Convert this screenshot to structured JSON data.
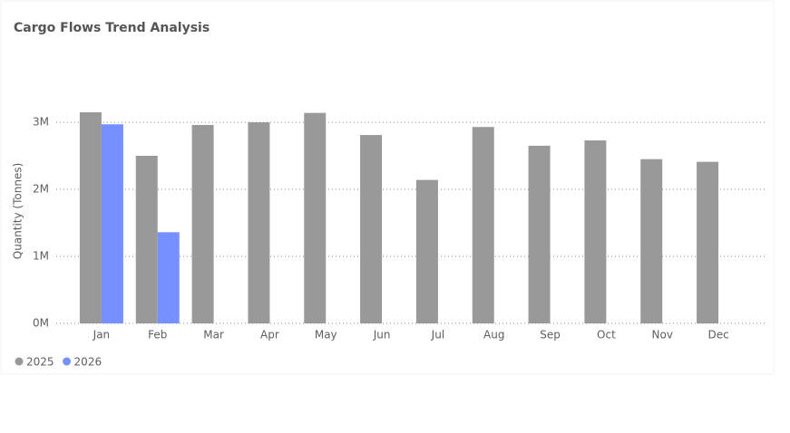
{
  "chart_data": {
    "type": "bar",
    "title": "Cargo Flows Trend Analysis",
    "y_label": "Quantity (Tonnes)",
    "categories": [
      "Jan",
      "Feb",
      "Mar",
      "Apr",
      "May",
      "Jun",
      "Jul",
      "Aug",
      "Sep",
      "Oct",
      "Nov",
      "Dec"
    ],
    "series": [
      {
        "name": "2025",
        "color": "#999999",
        "values": [
          3150000,
          2500000,
          2960000,
          3000000,
          3140000,
          2810000,
          2140000,
          2930000,
          2650000,
          2730000,
          2450000,
          2410000
        ]
      },
      {
        "name": "2026",
        "color": "#7690ff",
        "values": [
          2970000,
          1360000,
          null,
          null,
          null,
          null,
          null,
          null,
          null,
          null,
          null,
          null
        ]
      }
    ],
    "ylim": [
      0,
      3400000
    ],
    "yticks": [
      {
        "value": 0,
        "label": "0M"
      },
      {
        "value": 1000000,
        "label": "1M"
      },
      {
        "value": 2000000,
        "label": "2M"
      },
      {
        "value": 3000000,
        "label": "3M"
      }
    ],
    "grid": true,
    "legend": "bottom-left"
  }
}
